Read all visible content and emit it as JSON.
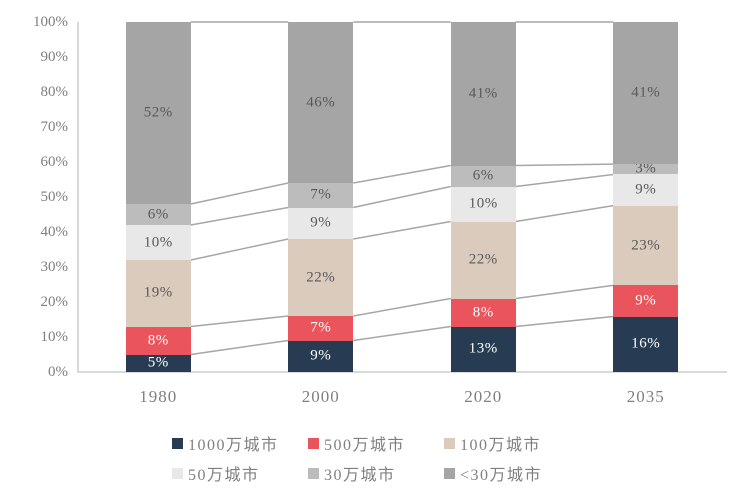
{
  "chart_data": {
    "type": "bar",
    "variant": "stacked-100-percent-column",
    "title": "",
    "xlabel": "",
    "ylabel": "",
    "categories": [
      "1980",
      "2000",
      "2020",
      "2035"
    ],
    "series": [
      {
        "name": "1000万城市",
        "color": "#273c53",
        "label_color": "#ffffff",
        "values": [
          5,
          9,
          13,
          16
        ]
      },
      {
        "name": "500万城市",
        "color": "#ea545c",
        "label_color": "#ffffff",
        "values": [
          8,
          7,
          8,
          9
        ]
      },
      {
        "name": "100万城市",
        "color": "#dbcbbd",
        "label_color": "#595959",
        "values": [
          19,
          22,
          22,
          23
        ]
      },
      {
        "name": "50万城市",
        "color": "#e8e8e8",
        "label_color": "#595959",
        "values": [
          10,
          9,
          10,
          9
        ]
      },
      {
        "name": "30万城市",
        "color": "#bcbcbc",
        "label_color": "#595959",
        "values": [
          6,
          7,
          6,
          3
        ]
      },
      {
        "name": "<30万城市",
        "color": "#a5a5a5",
        "label_color": "#595959",
        "values": [
          52,
          46,
          41,
          41
        ]
      }
    ],
    "data_label_suffix": "%",
    "yticks": [
      "0%",
      "10%",
      "20%",
      "30%",
      "40%",
      "50%",
      "60%",
      "70%",
      "80%",
      "90%",
      "100%"
    ],
    "ylim": [
      0,
      100
    ],
    "grid": false,
    "connector_lines": true,
    "legend_position": "bottom"
  },
  "ui_colors": {
    "background": "#ffffff",
    "axis_line": "#d9d9d9",
    "connector_line": "#a6a6a6",
    "tick_text": "#7f7f7f",
    "legend_text": "#7f7f7f"
  }
}
